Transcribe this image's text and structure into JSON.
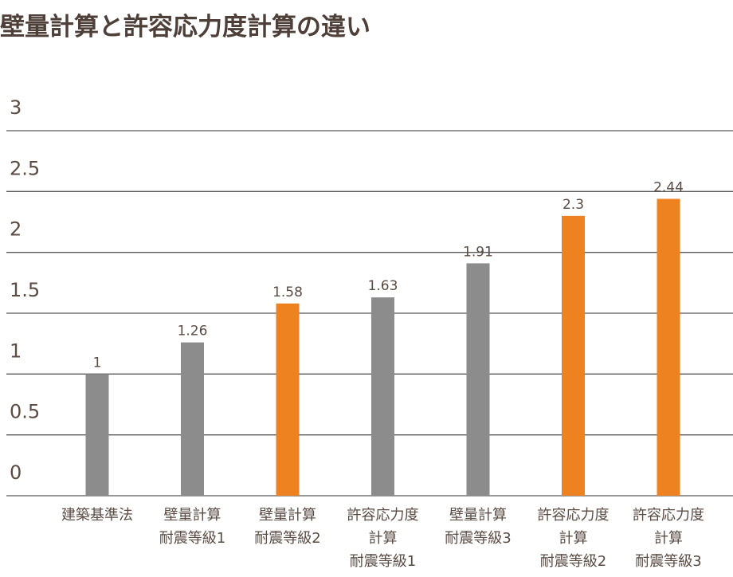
{
  "chart_data": {
    "type": "bar",
    "title": "壁量計算と許容応力度計算の違い",
    "xlabel": "",
    "ylabel": "",
    "ylim": [
      0,
      3
    ],
    "yticks": [
      "0",
      "0.5",
      "1",
      "1.5",
      "2",
      "2.5",
      "3"
    ],
    "grid": true,
    "legend": "none",
    "categories": [
      [
        "建築基準法"
      ],
      [
        "壁量計算",
        "耐震等級1"
      ],
      [
        "壁量計算",
        "耐震等級2"
      ],
      [
        "許容応力度",
        "計算",
        "耐震等級1"
      ],
      [
        "壁量計算",
        "耐震等級3"
      ],
      [
        "許容応力度",
        "計算",
        "耐震等級2"
      ],
      [
        "許容応力度",
        "計算",
        "耐震等級3"
      ]
    ],
    "values": [
      1,
      1.26,
      1.58,
      1.63,
      1.91,
      2.3,
      2.44
    ],
    "value_labels": [
      "1",
      "1.26",
      "1.58",
      "1.63",
      "1.91",
      "2.3",
      "2.44"
    ],
    "bar_colors": [
      "#8c8c8c",
      "#8c8c8c",
      "#ef8220",
      "#8c8c8c",
      "#8c8c8c",
      "#ef8220",
      "#ef8220"
    ],
    "gridline_color": "#595959"
  }
}
